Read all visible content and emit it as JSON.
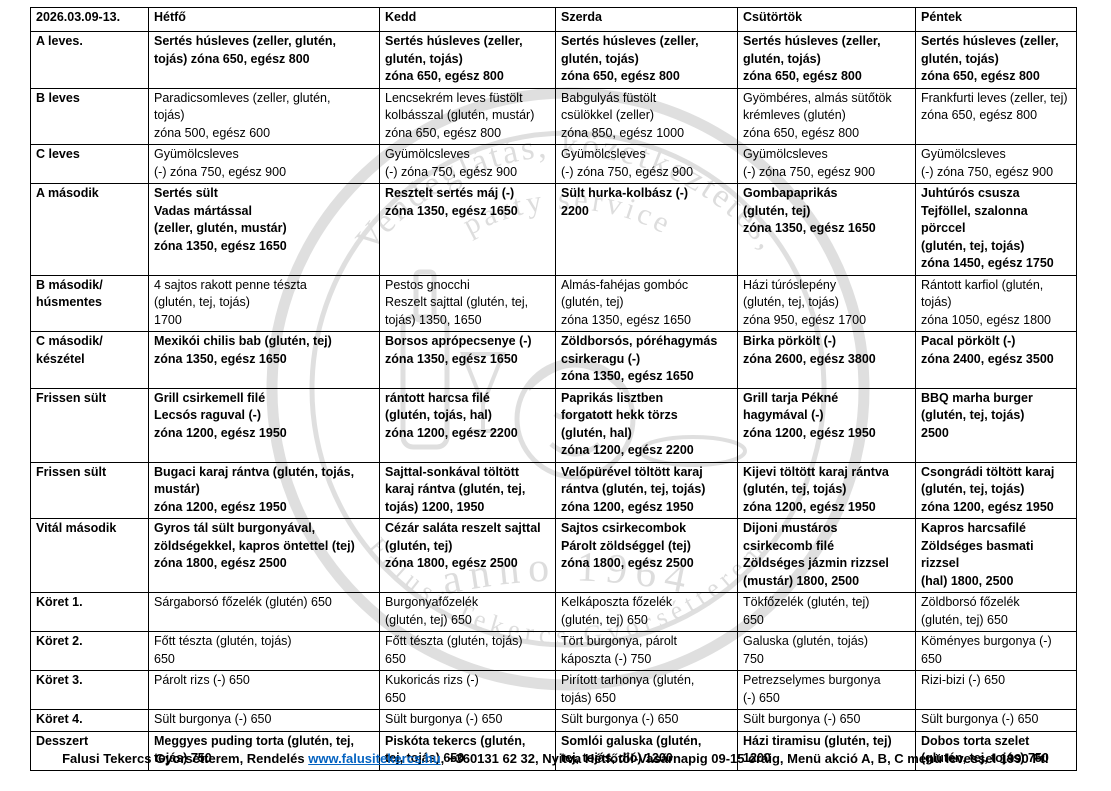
{
  "table": {
    "date_range": "2026.03.09-13.",
    "days": [
      "Hétfő",
      "Kedd",
      "Szerda",
      "Csütörtök",
      "Péntek"
    ],
    "rows": [
      {
        "label": "A leves.",
        "bold": true,
        "cells": [
          "Sertés húsleves (zeller, glutén,\ntojás) zóna 650, egész 800",
          "Sertés húsleves (zeller,\nglutén, tojás)\nzóna 650, egész 800",
          "Sertés húsleves (zeller,\nglutén, tojás)\nzóna 650, egész 800",
          "Sertés húsleves (zeller,\nglutén, tojás)\nzóna 650, egész 800",
          "Sertés húsleves (zeller,\nglutén, tojás)\nzóna 650, egész 800"
        ]
      },
      {
        "label": "B leves",
        "bold": false,
        "cells": [
          "Paradicsomleves (zeller, glutén,\ntojás)\nzóna 500, egész 600",
          "Lencsekrém leves füstölt\nkolbásszal (glutén, mustár)\nzóna 650, egész 800",
          "Babgulyás füstölt\ncsülökkel (zeller)\nzóna 850, egész 1000",
          "Gyömbéres, almás sütőtök\nkrémleves (glutén)\nzóna 650, egész 800",
          "Frankfurti leves (zeller, tej)\nzóna 650, egész 800"
        ]
      },
      {
        "label": "C leves",
        "bold": false,
        "cells": [
          "Gyümölcsleves\n(-) zóna 750, egész 900",
          "Gyümölcsleves\n(-) zóna 750, egész 900",
          "Gyümölcsleves\n(-) zóna 750, egész 900",
          "Gyümölcsleves\n(-) zóna 750, egész 900",
          "Gyümölcsleves\n(-) zóna 750, egész 900"
        ]
      },
      {
        "label": "A második",
        "bold": true,
        "cells": [
          "Sertés sült\nVadas mártással\n(zeller, glutén, mustár)\nzóna 1350, egész 1650",
          "Resztelt sertés máj (-)\nzóna 1350, egész 1650",
          "Sült hurka-kolbász (-)\n2200",
          "Gombapaprikás\n(glutén, tej)\nzóna 1350, egész 1650",
          "Juhtúrós csusza\nTejföllel, szalonna pörccel\n(glutén, tej, tojás)\nzóna 1450, egész 1750"
        ]
      },
      {
        "label": "B második/\nhúsmentes",
        "bold": false,
        "cells": [
          "4 sajtos rakott penne tészta\n(glutén, tej, tojás)\n1700",
          "Pestos gnocchi\nReszelt sajttal (glutén, tej,\ntojás) 1350, 1650",
          "Almás-fahéjas gombóc\n(glutén, tej)\nzóna 1350, egész 1650",
          "Házi túróslepény\n(glutén, tej, tojás)\nzóna 950, egész 1700",
          "Rántott karfiol (glutén,\ntojás)\nzóna 1050, egész 1800"
        ]
      },
      {
        "label": "C második/\nkészétel",
        "bold": true,
        "cells": [
          "Mexikói chilis bab (glutén, tej)\nzóna 1350, egész 1650",
          "Borsos aprópecsenye (-)\nzóna 1350, egész 1650",
          "Zöldborsós, póréhagymás\ncsirkeragu (-)\nzóna 1350, egész 1650",
          "Birka pörkölt (-)\nzóna 2600, egész 3800",
          "Pacal pörkölt (-)\nzóna 2400, egész 3500"
        ]
      },
      {
        "label": "Frissen sült",
        "bold": true,
        "cells": [
          "Grill csirkemell filé\nLecsós raguval (-)\nzóna 1200, egész 1950",
          "rántott harcsa filé\n(glutén, tojás, hal)\nzóna 1200, egész 2200",
          "Paprikás lisztben\nforgatott hekk törzs\n(glutén, hal)\nzóna 1200, egész 2200",
          "Grill tarja Pékné\nhagymával (-)\nzóna 1200, egész 1950",
          "BBQ marha burger\n(glutén, tej, tojás)\n2500"
        ]
      },
      {
        "label": "Frissen sült",
        "bold": true,
        "cells": [
          "Bugaci karaj rántva (glutén, tojás,\nmustár)\nzóna 1200, egész 1950",
          "Sajttal-sonkával töltött\nkaraj rántva (glutén, tej,\ntojás) 1200, 1950",
          "Velőpürével töltött karaj\nrántva (glutén, tej, tojás)\nzóna 1200, egész 1950",
          "Kijevi töltött karaj rántva\n(glutén, tej, tojás)\nzóna 1200, egész 1950",
          "Csongrádi töltött karaj\n(glutén, tej, tojás)\nzóna 1200, egész 1950"
        ]
      },
      {
        "label": "Vitál második",
        "bold": true,
        "cells": [
          "Gyros tál sült burgonyával,\nzöldségekkel, kapros öntettel (tej)\nzóna 1800, egész 2500",
          "Cézár saláta reszelt sajttal\n(glutén, tej)\nzóna 1800, egész 2500",
          "Sajtos csirkecombok\nPárolt zöldséggel (tej)\nzóna 1800, egész 2500",
          "Dijoni mustáros\ncsirkecomb filé\nZöldséges jázmin rizzsel\n(mustár) 1800, 2500",
          "Kapros harcsafilé\nZöldséges basmati rizzsel\n(hal) 1800, 2500"
        ]
      },
      {
        "label": "Köret 1.",
        "bold": false,
        "cells": [
          "Sárgaborsó főzelék (glutén) 650",
          "Burgonyafőzelék\n(glutén, tej) 650",
          "Kelkáposzta főzelék\n(glutén, tej) 650",
          "Tökfőzelék (glutén, tej)\n650",
          "Zöldborsó főzelék\n(glutén, tej) 650"
        ]
      },
      {
        "label": "Köret 2.",
        "bold": false,
        "cells": [
          "Főtt tészta (glutén, tojás)\n650",
          "Főtt tészta (glutén, tojás)\n650",
          "Tört burgonya, párolt\nkáposzta (-) 750",
          "Galuska (glutén, tojás)\n750",
          "Köményes burgonya (-)\n650"
        ]
      },
      {
        "label": "Köret 3.",
        "bold": false,
        "cells": [
          "Párolt rizs (-) 650",
          "Kukoricás rizs (-)\n650",
          "Pirított tarhonya (glutén,\ntojás) 650",
          "Petrezselymes burgonya\n(-) 650",
          "Rizi-bizi (-) 650"
        ]
      },
      {
        "label": "Köret 4.",
        "bold": false,
        "cells": [
          "Sült burgonya (-) 650",
          "Sült burgonya (-) 650",
          "Sült burgonya (-) 650",
          "Sült burgonya (-) 650",
          "Sült burgonya (-) 650"
        ]
      },
      {
        "label": "Desszert",
        "bold": true,
        "cells": [
          "Meggyes puding torta (glutén, tej,\ntojás) 750",
          "Piskóta tekercs (glutén,\ntej, tojás) 650",
          "Somlói galuska (glutén,\ntej, tojás, dió) 1200",
          "Házi tiramisu (glutén, tej)\n1200",
          "Dobos torta szelet\n(glutén, tej, tojás) 750"
        ]
      }
    ]
  },
  "watermark": {
    "arc_line1": "Vendéglátás, közétkeztetés,",
    "arc_line2": "party service",
    "anno": "anno 1964",
    "ring_text": "Falusi Tekercs Gyorsétterem",
    "color": "#c6c6c6"
  },
  "footer": {
    "prefix": "Falusi Tekercs Gyorsétterem, Rendelés ",
    "link": "www.falusitekercs.hu",
    "suffix": ", +360131 62 32, Nyitva Hétfőtől-Vasárnapig 09-15 óráig, Menü akció A, B, C menü levessel 1990 Ft!",
    "link_color": "#0563c1"
  }
}
